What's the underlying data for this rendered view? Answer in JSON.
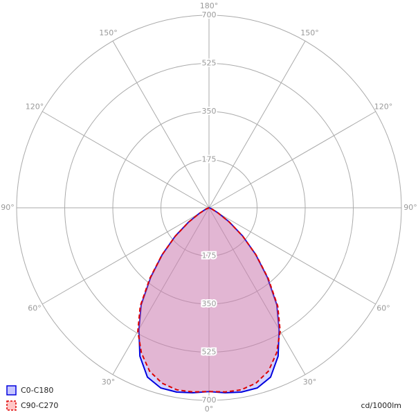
{
  "chart_data": {
    "type": "polar",
    "angles": [
      -90,
      -85,
      -80,
      -75,
      -70,
      -65,
      -60,
      -55,
      -50,
      -45,
      -40,
      -35,
      -30,
      -25,
      -20,
      -15,
      -10,
      -5,
      0,
      5,
      10,
      15,
      20,
      25,
      30,
      35,
      40,
      45,
      50,
      55,
      60,
      65,
      70,
      75,
      80,
      85,
      90
    ],
    "series": [
      {
        "name": "C0-C180",
        "color": "#0000dd",
        "fill": "#8080ff",
        "dash": false,
        "values": [
          0,
          0,
          0,
          0,
          5,
          15,
          40,
          90,
          160,
          240,
          330,
          430,
          510,
          595,
          655,
          678,
          680,
          675,
          668,
          675,
          680,
          678,
          655,
          595,
          510,
          430,
          330,
          240,
          160,
          90,
          40,
          15,
          5,
          0,
          0,
          0,
          0
        ]
      },
      {
        "name": "C90-C270",
        "color": "#dd0000",
        "fill": "#ff8080",
        "dash": true,
        "values": [
          0,
          0,
          0,
          0,
          5,
          15,
          40,
          90,
          160,
          242,
          335,
          436,
          518,
          582,
          632,
          660,
          672,
          672,
          668,
          672,
          672,
          660,
          632,
          582,
          518,
          436,
          335,
          242,
          160,
          90,
          40,
          15,
          5,
          0,
          0,
          0,
          0
        ]
      }
    ],
    "rlim": [
      0,
      700
    ],
    "rticks": [
      175,
      350,
      525,
      700
    ],
    "angle_ticks": [
      {
        "value": 0,
        "label": "0°"
      },
      {
        "value": 30,
        "label": "30°"
      },
      {
        "value": 60,
        "label": "60°"
      },
      {
        "value": 90,
        "label": "90°"
      },
      {
        "value": 120,
        "label": "120°"
      },
      {
        "value": 150,
        "label": "150°"
      },
      {
        "value": 180,
        "label": "180°"
      }
    ],
    "unit": "cd/1000lm"
  }
}
